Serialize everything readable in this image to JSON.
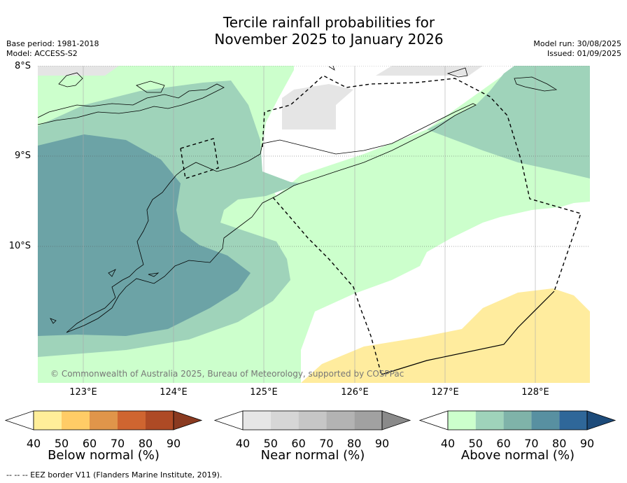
{
  "title": {
    "line1": "Tercile rainfall probabilities for",
    "line2": "November 2025 to January 2026"
  },
  "meta_left": {
    "base_period": "Base period: 1981-2018",
    "model": "Model: ACCESS-S2"
  },
  "meta_right": {
    "model_run": "Model run: 30/08/2025",
    "issued": "Issued: 01/09/2025"
  },
  "map": {
    "lat_labels": [
      "8°S",
      "9°S",
      "10°S"
    ],
    "lon_labels": [
      "123°E",
      "124°E",
      "125°E",
      "126°E",
      "127°E",
      "128°E"
    ],
    "copyright": "© Commonwealth of Australia 2025, Bureau of Meteorology, supported by COSPPac",
    "colors": {
      "above_50": "#ccffcc",
      "above_60": "#9fd3ba",
      "above_70": "#6ca3a6",
      "near_50": "#e5e5e5",
      "below_50": "#ffec9e",
      "coast": "#000000",
      "eez": "#000000"
    }
  },
  "colorbars": [
    {
      "title": "Below normal (%)",
      "ticks": [
        "40",
        "50",
        "60",
        "70",
        "80",
        "90"
      ],
      "colors": [
        "#ffffff",
        "#ffee99",
        "#ffcc66",
        "#e0954a",
        "#cf6530",
        "#ae4a25",
        "#8a3a20"
      ]
    },
    {
      "title": "Near normal (%)",
      "ticks": [
        "40",
        "50",
        "60",
        "70",
        "80",
        "90"
      ],
      "colors": [
        "#ffffff",
        "#e6e6e6",
        "#d6d6d6",
        "#c6c6c6",
        "#b3b3b3",
        "#a1a1a1",
        "#8a8a8a"
      ]
    },
    {
      "title": "Above normal (%)",
      "ticks": [
        "40",
        "50",
        "60",
        "70",
        "80",
        "90"
      ],
      "colors": [
        "#ffffff",
        "#ccffcc",
        "#9fd3ba",
        "#7fb3a9",
        "#5890a1",
        "#2f6799",
        "#1d4b7a"
      ]
    }
  ],
  "footnote": "--  --  -- EEZ border V11 (Flanders Marine Institute, 2019)."
}
